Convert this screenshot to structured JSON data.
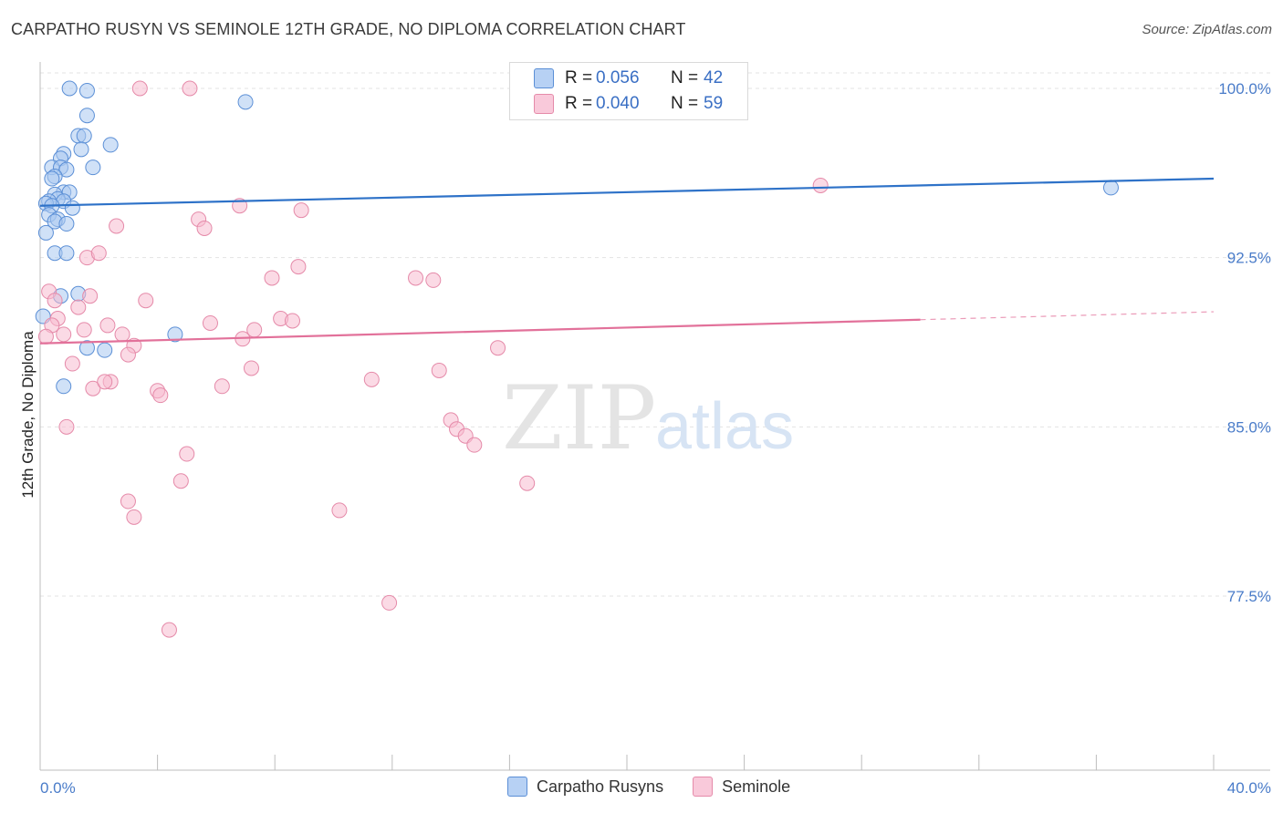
{
  "title": "CARPATHO RUSYN VS SEMINOLE 12TH GRADE, NO DIPLOMA CORRELATION CHART",
  "source": "Source: ZipAtlas.com",
  "watermark": {
    "zip": "ZIP",
    "atlas": "atlas"
  },
  "legend": {
    "rows": [
      {
        "r_label": "R =",
        "r_value": "0.056",
        "n_label": "N =",
        "n_value": "42"
      },
      {
        "r_label": "R =",
        "r_value": "0.040",
        "n_label": "N =",
        "n_value": "59"
      }
    ]
  },
  "colors": {
    "blue_fill": "#a9c8f0",
    "blue_stroke": "#5b8fd6",
    "blue_line": "#2e72c8",
    "pink_fill": "#f7bcd0",
    "pink_stroke": "#e58aa9",
    "pink_line": "#e2719a",
    "grid": "#e3e3e3",
    "axis": "#bdbdbd",
    "tick_label": "#4a7cc9"
  },
  "chart_data": {
    "type": "scatter",
    "title": "CARPATHO RUSYN VS SEMINOLE 12TH GRADE, NO DIPLOMA CORRELATION CHART",
    "xlabel": "",
    "ylabel": "12th Grade, No Diploma",
    "xlim": [
      0,
      40
    ],
    "ylim": [
      70.0,
      101.0
    ],
    "x_tick_labels": [
      "0.0%",
      "40.0%"
    ],
    "y_ticks": [
      100.0,
      92.5,
      85.0,
      77.5
    ],
    "y_tick_labels": [
      "100.0%",
      "92.5%",
      "85.0%",
      "77.5%"
    ],
    "series": [
      {
        "name": "Carpatho Rusyns",
        "color": "blue",
        "trend": {
          "x": [
            0,
            40
          ],
          "y": [
            94.8,
            96.0
          ],
          "solid_until": 40
        },
        "points": [
          [
            1.0,
            100.0
          ],
          [
            1.6,
            99.9
          ],
          [
            7.0,
            99.4
          ],
          [
            1.6,
            98.8
          ],
          [
            1.3,
            97.9
          ],
          [
            1.5,
            97.9
          ],
          [
            2.4,
            97.5
          ],
          [
            1.4,
            97.3
          ],
          [
            0.8,
            97.1
          ],
          [
            0.7,
            96.9
          ],
          [
            1.8,
            96.5
          ],
          [
            0.4,
            96.5
          ],
          [
            0.7,
            96.5
          ],
          [
            0.9,
            96.4
          ],
          [
            0.5,
            96.1
          ],
          [
            0.4,
            96.0
          ],
          [
            0.8,
            95.4
          ],
          [
            1.0,
            95.4
          ],
          [
            0.5,
            95.3
          ],
          [
            0.6,
            95.1
          ],
          [
            0.3,
            95.0
          ],
          [
            0.8,
            95.0
          ],
          [
            0.2,
            94.9
          ],
          [
            0.4,
            94.8
          ],
          [
            1.1,
            94.7
          ],
          [
            0.3,
            94.4
          ],
          [
            0.6,
            94.2
          ],
          [
            0.5,
            94.1
          ],
          [
            0.9,
            94.0
          ],
          [
            0.2,
            93.6
          ],
          [
            0.5,
            92.7
          ],
          [
            0.9,
            92.7
          ],
          [
            1.3,
            90.9
          ],
          [
            0.7,
            90.8
          ],
          [
            0.1,
            89.9
          ],
          [
            4.6,
            89.1
          ],
          [
            1.6,
            88.5
          ],
          [
            2.2,
            88.4
          ],
          [
            0.8,
            86.8
          ],
          [
            36.5,
            95.6
          ]
        ]
      },
      {
        "name": "Seminole",
        "color": "pink",
        "trend": {
          "x": [
            0,
            40
          ],
          "y": [
            88.7,
            90.1
          ],
          "solid_until": 30
        },
        "points": [
          [
            3.4,
            100.0
          ],
          [
            5.1,
            100.0
          ],
          [
            0.3,
            91.0
          ],
          [
            0.5,
            90.6
          ],
          [
            0.6,
            89.8
          ],
          [
            0.4,
            89.5
          ],
          [
            0.2,
            89.0
          ],
          [
            0.8,
            89.1
          ],
          [
            1.3,
            90.3
          ],
          [
            1.7,
            90.8
          ],
          [
            1.5,
            89.3
          ],
          [
            2.3,
            89.5
          ],
          [
            2.8,
            89.1
          ],
          [
            3.2,
            88.6
          ],
          [
            3.0,
            88.2
          ],
          [
            1.1,
            87.8
          ],
          [
            2.4,
            87.0
          ],
          [
            1.8,
            86.7
          ],
          [
            2.2,
            87.0
          ],
          [
            3.6,
            90.6
          ],
          [
            1.6,
            92.5
          ],
          [
            2.0,
            92.7
          ],
          [
            2.6,
            93.9
          ],
          [
            5.4,
            94.2
          ],
          [
            5.6,
            93.8
          ],
          [
            6.8,
            94.8
          ],
          [
            8.9,
            94.6
          ],
          [
            8.8,
            92.1
          ],
          [
            7.9,
            91.6
          ],
          [
            7.2,
            87.6
          ],
          [
            6.9,
            88.9
          ],
          [
            7.3,
            89.3
          ],
          [
            8.2,
            89.8
          ],
          [
            8.6,
            89.7
          ],
          [
            5.8,
            89.6
          ],
          [
            6.2,
            86.8
          ],
          [
            4.0,
            86.6
          ],
          [
            4.1,
            86.4
          ],
          [
            0.9,
            85.0
          ],
          [
            5.0,
            83.8
          ],
          [
            4.8,
            82.6
          ],
          [
            3.0,
            81.7
          ],
          [
            3.2,
            81.0
          ],
          [
            10.2,
            81.3
          ],
          [
            11.3,
            87.1
          ],
          [
            12.8,
            91.6
          ],
          [
            13.4,
            91.5
          ],
          [
            13.6,
            87.5
          ],
          [
            14.0,
            85.3
          ],
          [
            14.2,
            84.9
          ],
          [
            14.5,
            84.6
          ],
          [
            14.8,
            84.2
          ],
          [
            15.6,
            88.5
          ],
          [
            16.6,
            82.5
          ],
          [
            11.9,
            77.2
          ],
          [
            4.4,
            76.0
          ],
          [
            26.6,
            95.7
          ]
        ]
      }
    ]
  },
  "bottom_legend": [
    {
      "label": "Carpatho Rusyns",
      "color": "blue"
    },
    {
      "label": "Seminole",
      "color": "pink"
    }
  ]
}
